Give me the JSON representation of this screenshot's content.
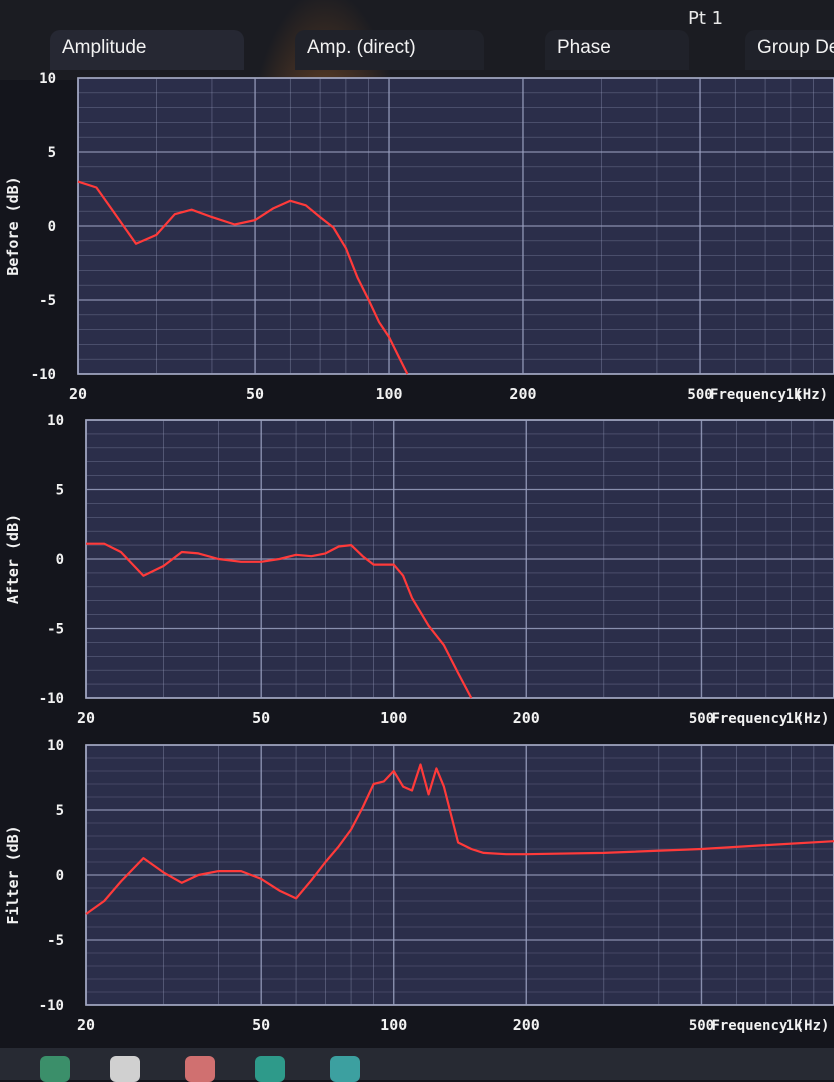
{
  "window": {
    "point_label": "Pt 1"
  },
  "tabs": [
    {
      "label": "Amplitude"
    },
    {
      "label": "Amp. (direct)"
    },
    {
      "label": "Phase"
    },
    {
      "label": "Group De"
    }
  ],
  "colors": {
    "trace": "#ff3a3a",
    "grid": "#9aa0c0",
    "plot_bg": "#2b2e4a",
    "axis_text": "#f2f2f2"
  },
  "taskbar": {
    "icons": [
      "file-icon",
      "chrome-icon",
      "app-icon",
      "vs-icon",
      "game-icon"
    ]
  },
  "chart_data": [
    {
      "type": "line",
      "ylabel": "Before (dB)",
      "xlabel": "Frequency (Hz)",
      "xscale": "log",
      "xlim": [
        20,
        1000
      ],
      "ylim": [
        -10,
        10
      ],
      "x_tick_labels": [
        "20",
        "50",
        "100",
        "200",
        "500",
        "1k"
      ],
      "y_tick_labels": [
        "10",
        "5",
        "0",
        "-5",
        "-10"
      ],
      "grid": true,
      "series": [
        {
          "x": [
            20,
            22,
            24,
            27,
            30,
            33,
            36,
            40,
            45,
            50,
            55,
            60,
            65,
            70,
            75,
            80,
            85,
            90,
            95,
            100,
            105,
            110
          ],
          "y": [
            3,
            2.6,
            1,
            -1.2,
            -0.6,
            0.8,
            1.1,
            0.6,
            0.1,
            0.4,
            1.2,
            1.7,
            1.4,
            0.6,
            -0.1,
            -1.5,
            -3.5,
            -5,
            -6.5,
            -7.5,
            -8.8,
            -10
          ]
        }
      ]
    },
    {
      "type": "line",
      "ylabel": "After (dB)",
      "xlabel": "Frequency (Hz)",
      "xscale": "log",
      "xlim": [
        20,
        1000
      ],
      "ylim": [
        -10,
        10
      ],
      "x_tick_labels": [
        "20",
        "50",
        "100",
        "200",
        "500",
        "1k"
      ],
      "y_tick_labels": [
        "10",
        "5",
        "0",
        "-5",
        "-10"
      ],
      "grid": true,
      "series": [
        {
          "x": [
            20,
            22,
            24,
            27,
            30,
            33,
            36,
            40,
            45,
            50,
            55,
            60,
            65,
            70,
            75,
            80,
            85,
            90,
            95,
            100,
            105,
            110,
            120,
            130,
            140,
            150
          ],
          "y": [
            1.1,
            1.1,
            0.5,
            -1.2,
            -0.5,
            0.5,
            0.4,
            0,
            -0.2,
            -0.2,
            0,
            0.3,
            0.2,
            0.4,
            0.9,
            1,
            0.2,
            -0.4,
            -0.4,
            -0.4,
            -1.2,
            -2.8,
            -4.8,
            -6.2,
            -8.2,
            -10
          ]
        }
      ]
    },
    {
      "type": "line",
      "ylabel": "Filter (dB)",
      "xlabel": "Frequency (Hz)",
      "xscale": "log",
      "xlim": [
        20,
        1000
      ],
      "ylim": [
        -10,
        10
      ],
      "x_tick_labels": [
        "20",
        "50",
        "100",
        "200",
        "500",
        "1k"
      ],
      "y_tick_labels": [
        "10",
        "5",
        "0",
        "-5",
        "-10"
      ],
      "grid": true,
      "series": [
        {
          "x": [
            20,
            22,
            24,
            27,
            30,
            33,
            36,
            40,
            45,
            50,
            55,
            60,
            65,
            70,
            75,
            80,
            85,
            90,
            95,
            100,
            105,
            110,
            115,
            120,
            125,
            130,
            140,
            150,
            160,
            180,
            200,
            300,
            500,
            700,
            1000
          ],
          "y": [
            -3,
            -2,
            -0.5,
            1.3,
            0.2,
            -0.6,
            0,
            0.3,
            0.3,
            -0.3,
            -1.2,
            -1.8,
            -0.4,
            1,
            2.2,
            3.5,
            5.2,
            7,
            7.2,
            8,
            6.8,
            6.5,
            8.5,
            6.2,
            8.2,
            6.8,
            2.5,
            2,
            1.7,
            1.6,
            1.6,
            1.7,
            2,
            2.3,
            2.6
          ]
        }
      ]
    }
  ]
}
